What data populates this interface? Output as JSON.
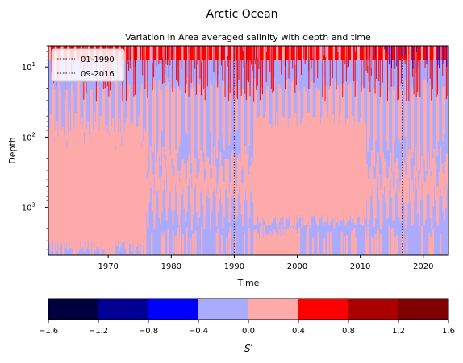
{
  "figure": {
    "suptitle": "Arctic Ocean"
  },
  "chart_data": {
    "type": "heatmap",
    "title": "Variation in Area averaged salinity with depth and time",
    "xlabel": "Time",
    "ylabel": "Depth",
    "y_scale": "log",
    "y_inverted": true,
    "xlim": [
      1960.5,
      2024
    ],
    "ylim": [
      5,
      4800
    ],
    "x_ticks": [
      1970,
      1980,
      1990,
      2000,
      2010,
      2020
    ],
    "y_ticks": [
      {
        "value": 10,
        "label": "10",
        "exp": "1"
      },
      {
        "value": 100,
        "label": "10",
        "exp": "2"
      },
      {
        "value": 1000,
        "label": "10",
        "exp": "3"
      }
    ],
    "markers": [
      {
        "label": "01-1990",
        "x": 1990.0,
        "style": "dotted",
        "color": "#3a3a5e"
      },
      {
        "label": "09-2016",
        "x": 2016.67,
        "style": "dotted",
        "color": "#3a3a5e"
      }
    ],
    "legend_position": "upper-left",
    "field_summary": {
      "surface_0_20m": "strong alternating S' anomalies from -1.2 to +0.8, red dominant, with deep red spikes down to ~40 m",
      "upper_20_300m": "predominantly -0.4 to 0.0 with periodic 0.0 to 0.4 bands",
      "band_1995_2010": "0.0 to 0.4 dominates from ~60 m to ~1500 m",
      "deep_300_1500m": "mixed -0.4 to 0.0 and 0.0 to 0.4",
      "bottom_2000m_plus": "mostly -0.4 to 0.0 before 1990, 0.0 to 0.4 patches 1993-2000"
    },
    "colorbar": {
      "label": "S′",
      "boundaries": [
        -1.6,
        -1.2,
        -0.8,
        -0.4,
        0.0,
        0.4,
        0.8,
        1.2,
        1.6
      ],
      "tick_labels": [
        "−1.6",
        "−1.2",
        "−0.8",
        "−0.4",
        "0.0",
        "0.4",
        "0.8",
        "1.2",
        "1.6"
      ],
      "colors": [
        "#00003f",
        "#000094",
        "#0000ff",
        "#aaaaff",
        "#ffaaaa",
        "#ff0000",
        "#aa0000",
        "#7f0000"
      ]
    }
  }
}
